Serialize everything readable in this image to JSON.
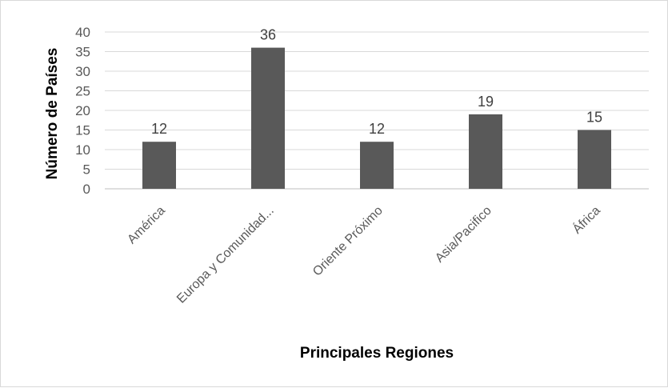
{
  "chart_data": {
    "type": "bar",
    "title": "",
    "xlabel": "Principales Regiones",
    "ylabel": "Número de Países",
    "categories": [
      "América",
      "Europa y Comunidad...",
      "Oriente Próximo",
      "Asia/Pacifico",
      "África"
    ],
    "values": [
      12,
      36,
      12,
      19,
      15
    ],
    "data_labels": [
      "12",
      "36",
      "12",
      "19",
      "15"
    ],
    "yticks": [
      "0",
      "5",
      "10",
      "15",
      "20",
      "25",
      "30",
      "35",
      "40"
    ],
    "ylim": [
      0,
      40
    ],
    "grid": true,
    "legend": "none",
    "colors": {
      "bar": "#595959",
      "grid": "#d9d9d9",
      "axis": "#bfbfbf"
    }
  }
}
